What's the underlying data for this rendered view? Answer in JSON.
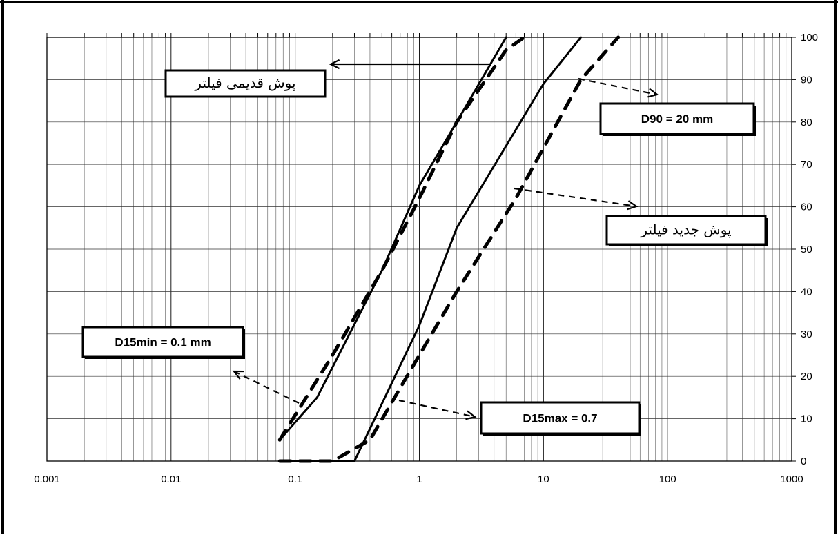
{
  "chart_data": {
    "type": "line",
    "title": "",
    "xlabel": "",
    "ylabel": "",
    "x_scale": "log",
    "xlim": [
      0.001,
      1000
    ],
    "ylim": [
      0,
      100
    ],
    "grid": true,
    "x_tick_labels": [
      "0.001",
      "0.01",
      "0.1",
      "1",
      "10",
      "100",
      "1000"
    ],
    "y_tick_labels": [
      "0",
      "10",
      "20",
      "30",
      "40",
      "50",
      "60",
      "70",
      "80",
      "90",
      "100"
    ],
    "series": [
      {
        "style": "solid",
        "color": "#000000",
        "x": [
          0.075,
          0.15,
          0.5,
          1.0,
          2.0,
          5.0
        ],
        "y": [
          5,
          15,
          45,
          65,
          80,
          100
        ]
      },
      {
        "style": "dashed",
        "color": "#000000",
        "x": [
          0.075,
          0.2,
          0.5,
          1.0,
          2.0,
          5.0,
          7.0
        ],
        "y": [
          5,
          25,
          45,
          62,
          80,
          97,
          100
        ]
      },
      {
        "style": "solid",
        "color": "#000000",
        "x": [
          0.075,
          0.3,
          1.0,
          2.0,
          10.0,
          20.0
        ],
        "y": [
          0,
          0,
          32,
          55,
          89,
          100
        ]
      },
      {
        "style": "dashed",
        "color": "#000000",
        "x": [
          0.075,
          0.2,
          0.4,
          1.0,
          2.0,
          6.0,
          20.0,
          40.0
        ],
        "y": [
          0,
          0,
          5,
          25,
          40,
          62,
          90,
          100
        ]
      }
    ],
    "annotations": [
      {
        "id": "old_filter",
        "text": "پوش قدیمی فیلتر"
      },
      {
        "id": "d90",
        "text": "D90 = 20 mm"
      },
      {
        "id": "new_filter",
        "text": "پوش جدید فیلتر"
      },
      {
        "id": "d15min",
        "text": "D15min = 0.1 mm"
      },
      {
        "id": "d15max",
        "text": "D15max = 0.7"
      }
    ]
  }
}
